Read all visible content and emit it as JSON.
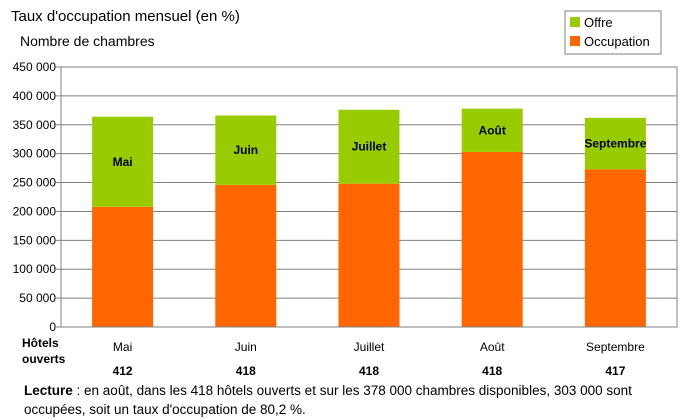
{
  "chart_data": {
    "type": "bar",
    "stacked": true,
    "title": "Taux d'occupation mensuel (en %)",
    "ylabel": "Nombre de chambres",
    "ylim": [
      0,
      450000
    ],
    "yticks": [
      0,
      50000,
      100000,
      150000,
      200000,
      250000,
      300000,
      350000,
      400000,
      450000
    ],
    "ytick_labels": [
      "0",
      "50 000",
      "100 000",
      "150 000",
      "200 000",
      "250 000",
      "300 000",
      "350 000",
      "400 000",
      "450 000"
    ],
    "categories": [
      "Mai",
      "Juin",
      "Juillet",
      "Août",
      "Septembre"
    ],
    "bar_labels": [
      "Mai",
      "Juin",
      "Juillet",
      "Août",
      "Septembre"
    ],
    "series": [
      {
        "name": "Occupation",
        "color": "#ff6600",
        "values": [
          208000,
          246000,
          248000,
          303000,
          273000
        ]
      },
      {
        "name": "Offre",
        "color": "#99cc00",
        "values": [
          156000,
          120000,
          128000,
          75000,
          89000
        ]
      }
    ],
    "legend": {
      "position": "top-right",
      "entries": [
        "Offre",
        "Occupation"
      ]
    },
    "grid": true
  },
  "hotels": {
    "header_line1": "Hôtels",
    "header_line2": "ouverts",
    "values": [
      "412",
      "418",
      "418",
      "418",
      "417"
    ]
  },
  "lecture": {
    "label": "Lecture",
    "text": " : en août, dans les 418 hôtels ouverts et sur les 378 000 chambres disponibles, 303 000 sont occupées, soit un taux d'occupation de 80,2 %."
  }
}
